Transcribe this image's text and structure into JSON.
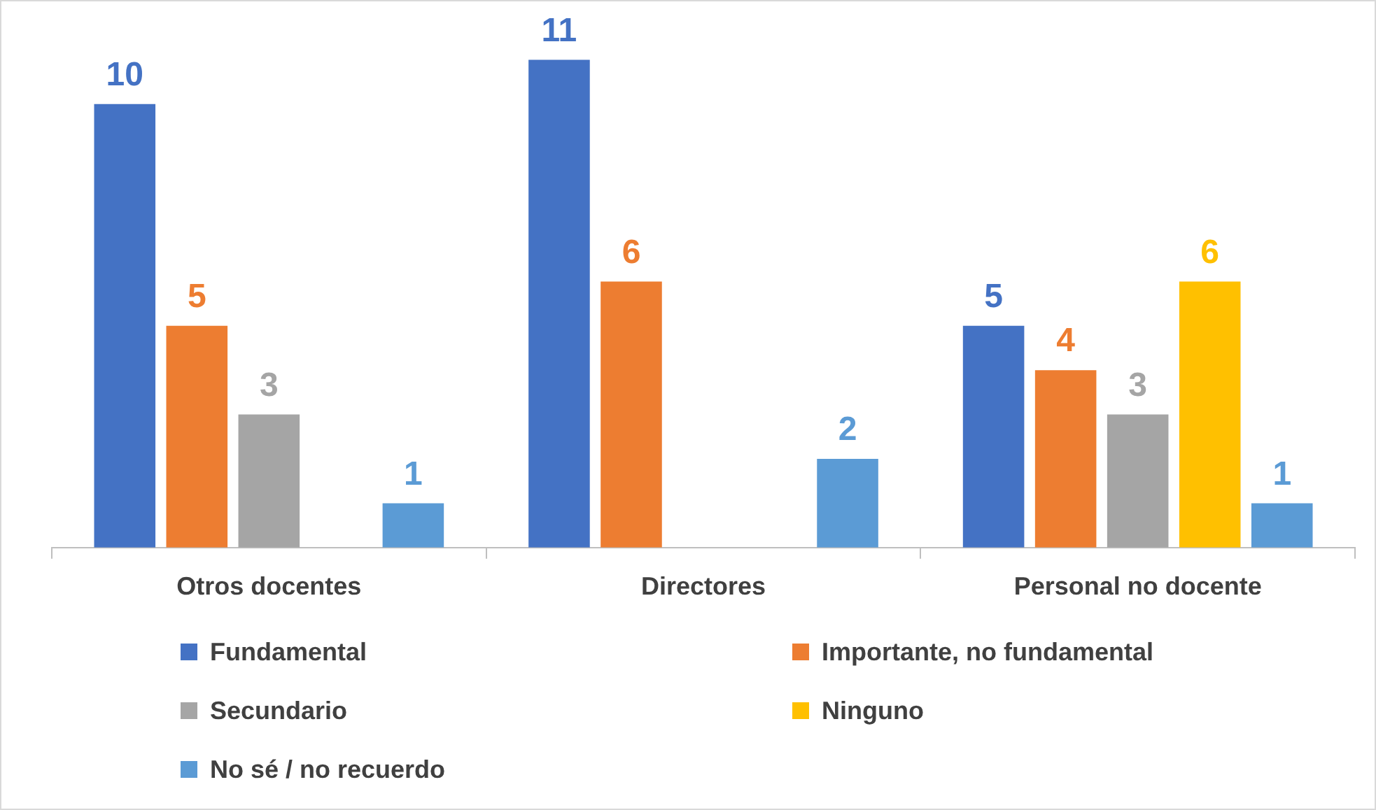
{
  "chart_data": {
    "type": "bar",
    "categories": [
      "Otros docentes",
      "Directores",
      "Personal no docente"
    ],
    "series": [
      {
        "name": "Fundamental",
        "color": "#4472c4",
        "values": [
          10,
          11,
          5
        ]
      },
      {
        "name": "Importante, no fundamental",
        "color": "#ed7d31",
        "values": [
          5,
          6,
          4
        ]
      },
      {
        "name": "Secundario",
        "color": "#a5a5a5",
        "values": [
          3,
          null,
          3
        ]
      },
      {
        "name": "Ninguno",
        "color": "#ffc000",
        "values": [
          null,
          null,
          6
        ]
      },
      {
        "name": "No sé / no recuerdo",
        "color": "#5b9bd5",
        "values": [
          1,
          2,
          1
        ]
      }
    ],
    "data_labels": true,
    "grid": false,
    "legend": "bottom"
  }
}
